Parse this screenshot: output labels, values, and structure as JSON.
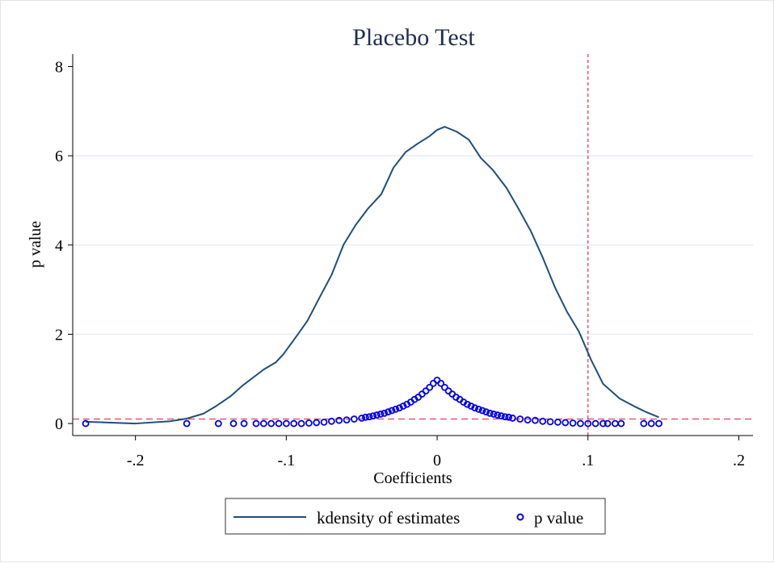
{
  "chart_data": {
    "type": "line",
    "title": "Placebo Test",
    "xlabel": "Coefficients",
    "ylabel": "p value",
    "xlim": [
      -0.2416,
      0.2094
    ],
    "ylim": [
      -0.27,
      8.28
    ],
    "grid": true,
    "x_ticks": [
      {
        "value": -0.2,
        "label": "-.2"
      },
      {
        "value": -0.1,
        "label": "-.1"
      },
      {
        "value": 0,
        "label": "0"
      },
      {
        "value": 0.1,
        "label": ".1"
      },
      {
        "value": 0.2,
        "label": ".2"
      }
    ],
    "y_ticks": [
      {
        "value": 0,
        "label": "0"
      },
      {
        "value": 2,
        "label": "2"
      },
      {
        "value": 4,
        "label": "4"
      },
      {
        "value": 6,
        "label": "6"
      },
      {
        "value": 8,
        "label": "8"
      }
    ],
    "reference_lines": {
      "horizontal": 0.1,
      "vertical": 0.1,
      "color": "#e0405e"
    },
    "legend": {
      "placement": "bottom",
      "entries": [
        "kdensity of estimates",
        "p value"
      ]
    },
    "series": [
      {
        "name": "kdensity of estimates",
        "type": "line",
        "color": "#1f4e79",
        "x": [
          -0.233,
          -0.2,
          -0.177,
          -0.166,
          -0.155,
          -0.147,
          -0.137,
          -0.129,
          -0.115,
          -0.107,
          -0.102,
          -0.094,
          -0.086,
          -0.078,
          -0.07,
          -0.062,
          -0.054,
          -0.046,
          -0.037,
          -0.029,
          -0.021,
          -0.013,
          -0.005,
          0,
          0.005,
          0.013,
          0.021,
          0.029,
          0.037,
          0.046,
          0.054,
          0.062,
          0.07,
          0.078,
          0.086,
          0.094,
          0.102,
          0.11,
          0.121,
          0.131,
          0.139,
          0.147
        ],
        "y": [
          0.04,
          0.0,
          0.05,
          0.11,
          0.22,
          0.38,
          0.61,
          0.85,
          1.21,
          1.37,
          1.55,
          1.92,
          2.3,
          2.82,
          3.33,
          4.01,
          4.45,
          4.81,
          5.14,
          5.73,
          6.08,
          6.27,
          6.44,
          6.58,
          6.65,
          6.54,
          6.36,
          5.95,
          5.68,
          5.28,
          4.81,
          4.32,
          3.72,
          3.06,
          2.51,
          2.06,
          1.43,
          0.89,
          0.56,
          0.38,
          0.25,
          0.14
        ]
      },
      {
        "name": "p value",
        "type": "scatter",
        "color": "#0000ee",
        "x": [
          -0.233,
          -0.166,
          -0.145,
          -0.135,
          -0.128,
          -0.12,
          -0.115,
          -0.11,
          -0.105,
          -0.1,
          -0.095,
          -0.09,
          -0.085,
          -0.08,
          -0.075,
          -0.07,
          -0.065,
          -0.06,
          -0.055,
          -0.05,
          -0.045,
          -0.04,
          -0.035,
          -0.03,
          -0.025,
          -0.02,
          -0.015,
          -0.01,
          -0.005,
          0,
          0.005,
          0.01,
          0.015,
          0.02,
          0.025,
          0.03,
          0.035,
          0.04,
          0.045,
          0.05,
          0.055,
          0.06,
          0.065,
          0.07,
          0.075,
          0.08,
          0.085,
          0.09,
          0.095,
          0.1,
          0.105,
          0.11,
          0.113,
          0.118,
          0.122,
          0.137,
          0.142,
          0.147,
          -0.0475,
          -0.0425,
          -0.0375,
          -0.0325,
          -0.0275,
          -0.0225,
          -0.0175,
          -0.0125,
          -0.0075,
          -0.0025,
          0.0025,
          0.0075,
          0.0125,
          0.0175,
          0.0225,
          0.0275,
          0.0325,
          0.0375,
          0.0425,
          0.0475
        ],
        "y": [
          0,
          0,
          0,
          0,
          0,
          0,
          0,
          0,
          0,
          0,
          0,
          0,
          0.01,
          0.02,
          0.03,
          0.05,
          0.07,
          0.08,
          0.1,
          0.12,
          0.15,
          0.19,
          0.23,
          0.29,
          0.35,
          0.43,
          0.54,
          0.66,
          0.81,
          0.97,
          0.81,
          0.66,
          0.54,
          0.43,
          0.35,
          0.29,
          0.23,
          0.19,
          0.15,
          0.12,
          0.1,
          0.08,
          0.07,
          0.05,
          0.04,
          0.03,
          0.02,
          0.01,
          0,
          0,
          0,
          0,
          0,
          0,
          0,
          0,
          0,
          0,
          0.14,
          0.17,
          0.21,
          0.26,
          0.32,
          0.39,
          0.48,
          0.59,
          0.73,
          0.9,
          0.9,
          0.73,
          0.59,
          0.48,
          0.39,
          0.32,
          0.26,
          0.21,
          0.17,
          0.14
        ]
      }
    ]
  }
}
